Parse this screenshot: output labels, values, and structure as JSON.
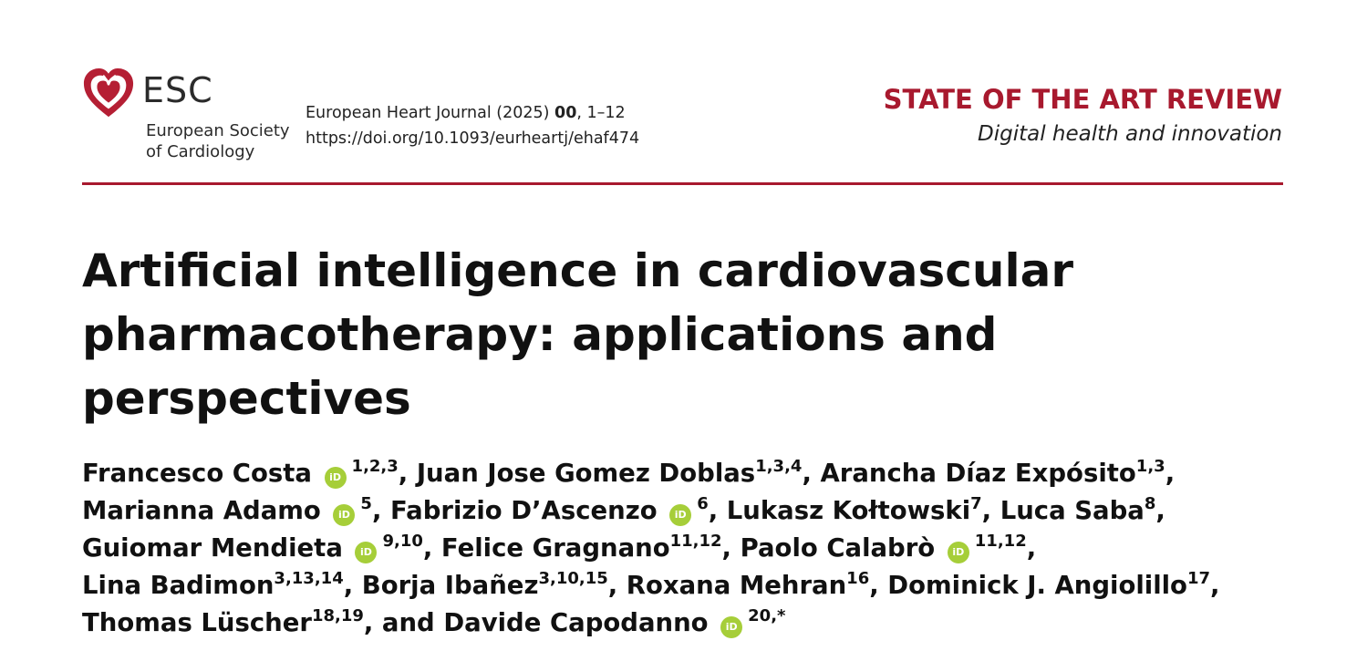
{
  "colors": {
    "accent": "#a8192e",
    "orcid": "#a6ce39"
  },
  "logo": {
    "mark": "ESC",
    "name_line1": "European Society",
    "name_line2": "of Cardiology",
    "icon": "heart-icon"
  },
  "journal": {
    "name": "European Heart Journal (2025)",
    "volume": "00",
    "pages": ", 1–12",
    "doi": "https://doi.org/10.1093/eurheartj/ehaf474"
  },
  "section": {
    "title": "STATE OF THE ART REVIEW",
    "subtitle": "Digital health and innovation"
  },
  "article": {
    "title_lines": [
      "Artificial intelligence in cardiovascular",
      "pharmacotherapy: applications and",
      "perspectives"
    ]
  },
  "orcid_icon": {
    "name": "orcid-icon",
    "text": "iD"
  },
  "authors": [
    [
      {
        "name": "Francesco Costa",
        "orcid": true,
        "sup": "1,2,3",
        "sep": ", "
      },
      {
        "name": "Juan Jose Gomez Doblas",
        "orcid": false,
        "sup": "1,3,4",
        "sep": ", "
      },
      {
        "name": "Arancha Díaz Expósito",
        "orcid": false,
        "sup": "1,3",
        "sep": ","
      }
    ],
    [
      {
        "name": "Marianna Adamo",
        "orcid": true,
        "sup": "5",
        "sep": ", "
      },
      {
        "name": "Fabrizio D’Ascenzo",
        "orcid": true,
        "sup": "6",
        "sep": ", "
      },
      {
        "name": "Lukasz Kołtowski",
        "orcid": false,
        "sup": "7",
        "sep": ", "
      },
      {
        "name": "Luca Saba",
        "orcid": false,
        "sup": "8",
        "sep": ","
      }
    ],
    [
      {
        "name": "Guiomar Mendieta",
        "orcid": true,
        "sup": "9,10",
        "sep": ", "
      },
      {
        "name": "Felice Gragnano",
        "orcid": false,
        "sup": "11,12",
        "sep": ", "
      },
      {
        "name": "Paolo Calabrò",
        "orcid": true,
        "sup": "11,12",
        "sep": ","
      }
    ],
    [
      {
        "name": "Lina Badimon",
        "orcid": false,
        "sup": "3,13,14",
        "sep": ", "
      },
      {
        "name": "Borja Ibañez",
        "orcid": false,
        "sup": "3,10,15",
        "sep": ", "
      },
      {
        "name": "Roxana Mehran",
        "orcid": false,
        "sup": "16",
        "sep": ", "
      },
      {
        "name": "Dominick J. Angiolillo",
        "orcid": false,
        "sup": "17",
        "sep": ","
      }
    ],
    [
      {
        "name": "Thomas Lüscher",
        "orcid": false,
        "sup": "18,19",
        "sep": ", "
      },
      {
        "name": "and Davide Capodanno",
        "orcid": true,
        "sup": "20,*",
        "sep": ""
      }
    ]
  ]
}
